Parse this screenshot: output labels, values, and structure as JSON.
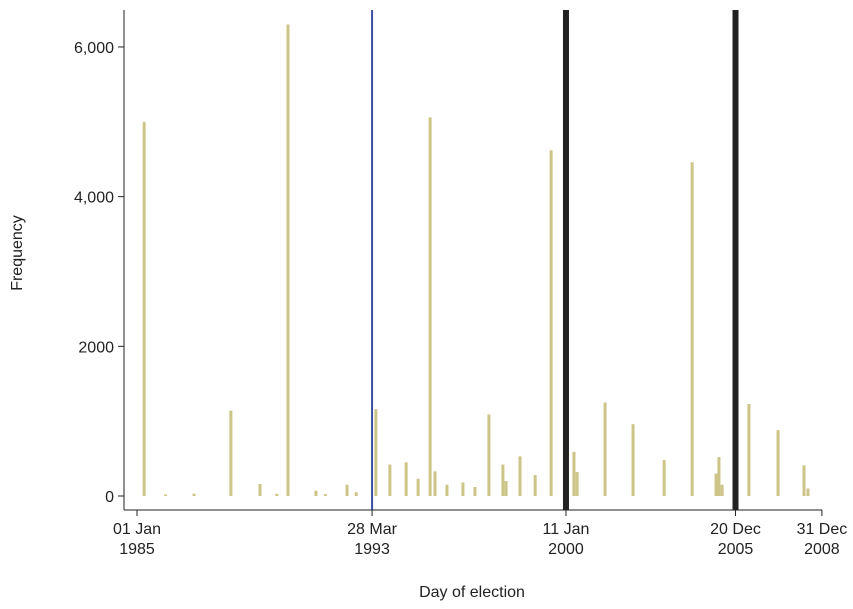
{
  "chart_data": {
    "type": "bar",
    "x_label": "Day of election",
    "y_label": "Frequency",
    "color": "#cdc487",
    "x": [
      1985.25,
      1986.0,
      1987.0,
      1988.29,
      1989.31,
      1989.9,
      1990.29,
      1991.27,
      1991.6,
      1992.36,
      1992.68,
      1993.37,
      1993.86,
      1994.43,
      1994.85,
      1995.27,
      1995.44,
      1995.86,
      1996.42,
      1996.84,
      1997.33,
      1997.82,
      1997.93,
      1998.42,
      1998.95,
      1999.51,
      2000.31,
      2000.42,
      2001.4,
      2002.38,
      2003.47,
      2004.45,
      2005.29,
      2005.39,
      2005.5,
      2006.44,
      2007.46,
      2008.37,
      2008.51
    ],
    "values": [
      5000,
      20,
      30,
      1140,
      160,
      30,
      6300,
      70,
      25,
      150,
      50,
      1160,
      420,
      450,
      230,
      5060,
      330,
      150,
      180,
      120,
      1090,
      420,
      200,
      530,
      280,
      4620,
      590,
      320,
      1250,
      960,
      480,
      4460,
      300,
      520,
      150,
      1230,
      880,
      410,
      100
    ],
    "xlim": [
      1984.545,
      2009.0
    ],
    "xticks": [
      {
        "value": 1985.0,
        "label": "01 Jan 1985"
      },
      {
        "value": 1993.236,
        "label": "28 Mar 1993"
      },
      {
        "value": 2000.03,
        "label": "11 Jan 2000"
      },
      {
        "value": 2005.97,
        "label": "20 Dec 2005"
      },
      {
        "value": 2008.997,
        "label": "31 Dec 2008"
      }
    ],
    "ylim": [
      -187,
      6494
    ],
    "yticks": [
      0,
      2000,
      {
        "value": 4000,
        "label": "4,000"
      },
      {
        "value": 6000,
        "label": "6,000"
      }
    ],
    "reference_lines": [
      {
        "x": 1993.236,
        "color": "#3b4ea0",
        "width": 2
      },
      {
        "x": 2000.03,
        "color": "#222222",
        "width": 6
      },
      {
        "x": 2005.97,
        "color": "#222222",
        "width": 6
      }
    ]
  }
}
